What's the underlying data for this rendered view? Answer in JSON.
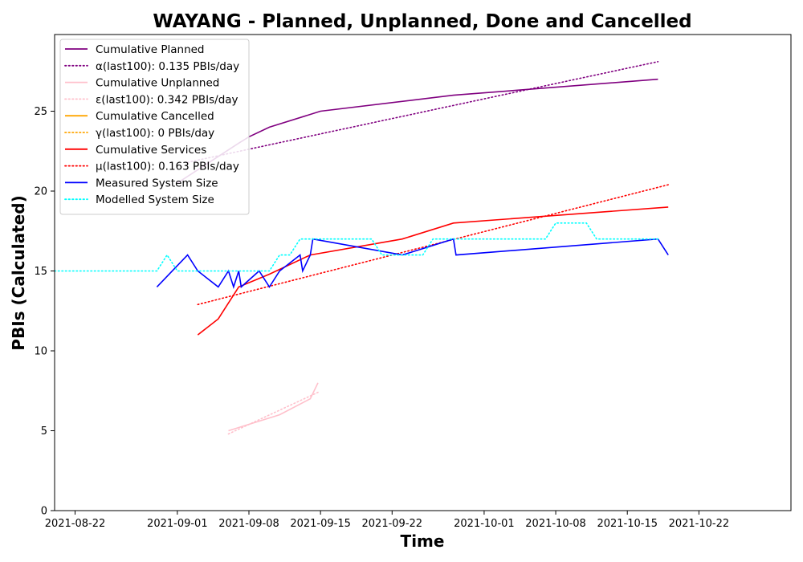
{
  "chart_data": {
    "type": "line",
    "title": "WAYANG - Planned, Unplanned, Done  and Cancelled",
    "xlabel": "Time",
    "ylabel": "PBIs (Calculated)",
    "xlim": [
      "2021-08-20",
      "2021-10-31"
    ],
    "ylim": [
      0,
      29.8
    ],
    "x_ticks": [
      "2021-08-22",
      "2021-09-01",
      "2021-09-08",
      "2021-09-15",
      "2021-09-22",
      "2021-10-01",
      "2021-10-08",
      "2021-10-15",
      "2021-10-22"
    ],
    "y_ticks": [
      0,
      5,
      10,
      15,
      20,
      25
    ],
    "grid": false,
    "legend_position": "top-left",
    "series": [
      {
        "name": "Cumulative Planned",
        "color": "#800080",
        "style": "solid",
        "points": [
          [
            "2021-09-01",
            20.5
          ],
          [
            "2021-09-07",
            23.0
          ],
          [
            "2021-09-08",
            23.4
          ],
          [
            "2021-09-10",
            24.0
          ],
          [
            "2021-09-15",
            25.0
          ],
          [
            "2021-09-28",
            26.0
          ],
          [
            "2021-10-18",
            27.0
          ]
        ]
      },
      {
        "name": "α(last100): 0.135 PBIs/day",
        "color": "#800080",
        "style": "dotted",
        "points": [
          [
            "2021-09-02",
            21.8
          ],
          [
            "2021-10-18",
            28.1
          ]
        ]
      },
      {
        "name": "Cumulative Unplanned",
        "color": "#ffc0cb",
        "style": "solid",
        "points": [
          [
            "2021-09-06",
            5.0
          ],
          [
            "2021-09-11",
            6.0
          ],
          [
            "2021-09-14",
            7.0
          ],
          [
            "2021-09-14T18:00",
            8.0
          ]
        ]
      },
      {
        "name": "ε(last100): 0.342 PBIs/day",
        "color": "#ffc0cb",
        "style": "dotted",
        "points": [
          [
            "2021-09-06",
            4.8
          ],
          [
            "2021-09-14T18:00",
            7.4
          ]
        ]
      },
      {
        "name": "Cumulative Cancelled",
        "color": "#ffa500",
        "style": "solid",
        "points": []
      },
      {
        "name": "γ(last100): 0 PBIs/day",
        "color": "#ffa500",
        "style": "dotted",
        "points": []
      },
      {
        "name": "Cumulative Services",
        "color": "#ff0000",
        "style": "solid",
        "points": [
          [
            "2021-09-03",
            11.0
          ],
          [
            "2021-09-05",
            12.0
          ],
          [
            "2021-09-07",
            14.0
          ],
          [
            "2021-09-10",
            14.8
          ],
          [
            "2021-09-14",
            16.0
          ],
          [
            "2021-09-23",
            17.0
          ],
          [
            "2021-09-28",
            18.0
          ],
          [
            "2021-10-19",
            19.0
          ]
        ]
      },
      {
        "name": "μ(last100): 0.163 PBIs/day",
        "color": "#ff0000",
        "style": "dotted",
        "points": [
          [
            "2021-09-03",
            12.9
          ],
          [
            "2021-10-19",
            20.4
          ]
        ]
      },
      {
        "name": "Measured System Size",
        "color": "#0000ff",
        "style": "solid",
        "points": [
          [
            "2021-08-30",
            14.0
          ],
          [
            "2021-09-02",
            16.0
          ],
          [
            "2021-09-03",
            15.0
          ],
          [
            "2021-09-05",
            14.0
          ],
          [
            "2021-09-06",
            15.0
          ],
          [
            "2021-09-06T12:00",
            14.0
          ],
          [
            "2021-09-07",
            15.0
          ],
          [
            "2021-09-07T06:00",
            14.0
          ],
          [
            "2021-09-09",
            15.0
          ],
          [
            "2021-09-10",
            14.0
          ],
          [
            "2021-09-11",
            15.0
          ],
          [
            "2021-09-13",
            16.0
          ],
          [
            "2021-09-13T06:00",
            15.0
          ],
          [
            "2021-09-14",
            16.0
          ],
          [
            "2021-09-14T06:00",
            17.0
          ],
          [
            "2021-09-23",
            16.0
          ],
          [
            "2021-09-28",
            17.0
          ],
          [
            "2021-09-28T06:00",
            16.0
          ],
          [
            "2021-10-18",
            17.0
          ],
          [
            "2021-10-19",
            16.0
          ]
        ]
      },
      {
        "name": "Modelled System Size",
        "color": "#00ffff",
        "style": "dotted",
        "points": [
          [
            "2021-08-20",
            15.0
          ],
          [
            "2021-08-30",
            15.0
          ],
          [
            "2021-08-31",
            16.0
          ],
          [
            "2021-09-01",
            15.0
          ],
          [
            "2021-09-10",
            15.0
          ],
          [
            "2021-09-11",
            16.0
          ],
          [
            "2021-09-12",
            16.0
          ],
          [
            "2021-09-13",
            17.0
          ],
          [
            "2021-09-20",
            17.0
          ],
          [
            "2021-09-21",
            16.0
          ],
          [
            "2021-09-25",
            16.0
          ],
          [
            "2021-09-26",
            17.0
          ],
          [
            "2021-10-07",
            17.0
          ],
          [
            "2021-10-08",
            18.0
          ],
          [
            "2021-10-11",
            18.0
          ],
          [
            "2021-10-12",
            17.0
          ],
          [
            "2021-10-18",
            17.0
          ]
        ]
      }
    ]
  }
}
